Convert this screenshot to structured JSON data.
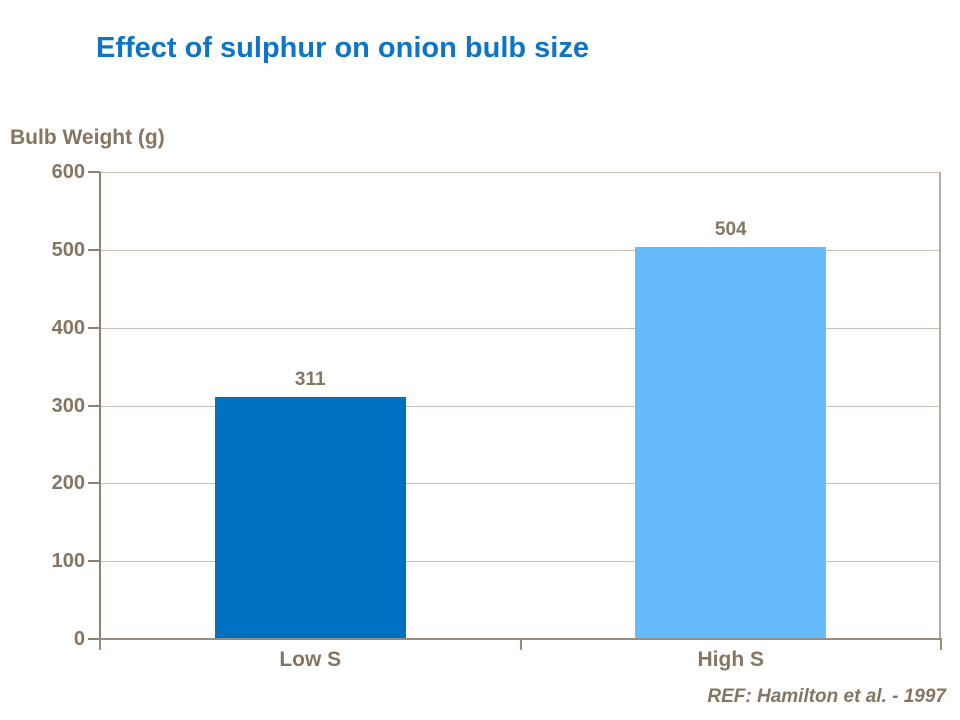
{
  "slide": {
    "title": "Effect of sulphur on onion bulb size",
    "reference": "REF: Hamilton et al. - 1997"
  },
  "chart_data": {
    "type": "bar",
    "title": "Effect of sulphur on onion bulb size",
    "ylabel": "Bulb Weight (g)",
    "xlabel": "",
    "categories": [
      "Low S",
      "High S"
    ],
    "values": [
      311,
      504
    ],
    "data_labels": [
      "311",
      "504"
    ],
    "ylim": [
      0,
      600
    ],
    "ytick_step": 100,
    "ytick_labels": [
      "0",
      "100",
      "200",
      "300",
      "400",
      "500",
      "600"
    ],
    "grid": "horizontal gridlines every 100; plot area bordered left, right, top and bottom",
    "legend": "none",
    "bar_colors": [
      "#0070C0",
      "#66BBFC"
    ],
    "source": "REF: Hamilton et al. - 1997"
  },
  "colors": {
    "title_text": "#0D74C8",
    "chart_text": "#857561",
    "axis_line": "#8F8070",
    "gridline": "#C7BEB1",
    "right_border": "#B5AB9E",
    "bar_low_s": "#0070C0",
    "bar_high_s": "#66BBFC",
    "background": "#FFFFFF"
  }
}
